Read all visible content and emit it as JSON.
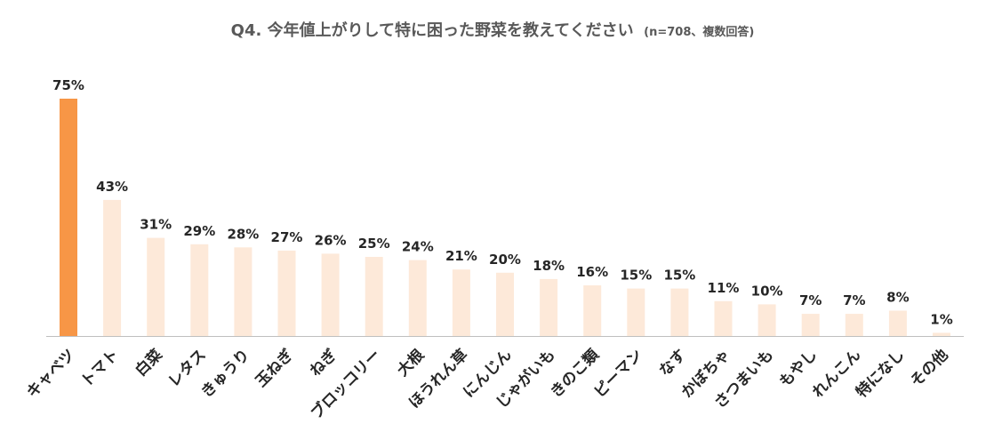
{
  "chart_data": {
    "type": "bar",
    "title": "Q4. 今年値上がりして特に困った野菜を教えてください",
    "subtitle": "(n=708、複数回答)",
    "categories": [
      "キャベツ",
      "トマト",
      "白菜",
      "レタス",
      "きゅうり",
      "玉ねぎ",
      "ねぎ",
      "ブロッコリー",
      "大根",
      "ほうれん草",
      "にんじん",
      "じゃがいも",
      "きのこ類",
      "ピーマン",
      "なす",
      "かぼちゃ",
      "さつまいも",
      "もやし",
      "れんこん",
      "特になし",
      "その他"
    ],
    "values": [
      75,
      43,
      31,
      29,
      28,
      27,
      26,
      25,
      24,
      21,
      20,
      18,
      16,
      15,
      15,
      11,
      10,
      7,
      7,
      8,
      1
    ],
    "value_labels": [
      "75%",
      "43%",
      "31%",
      "29%",
      "28%",
      "27%",
      "26%",
      "25%",
      "24%",
      "21%",
      "20%",
      "18%",
      "16%",
      "15%",
      "15%",
      "11%",
      "10%",
      "7%",
      "7%",
      "8%",
      "1%"
    ],
    "ylim": [
      0,
      75
    ],
    "grid": false,
    "legend": "none",
    "colors": {
      "highlight": "#F79646",
      "normal": "#FDE9D9",
      "axis": "#BFBFBF",
      "title": "#595959",
      "label": "#262626"
    }
  }
}
